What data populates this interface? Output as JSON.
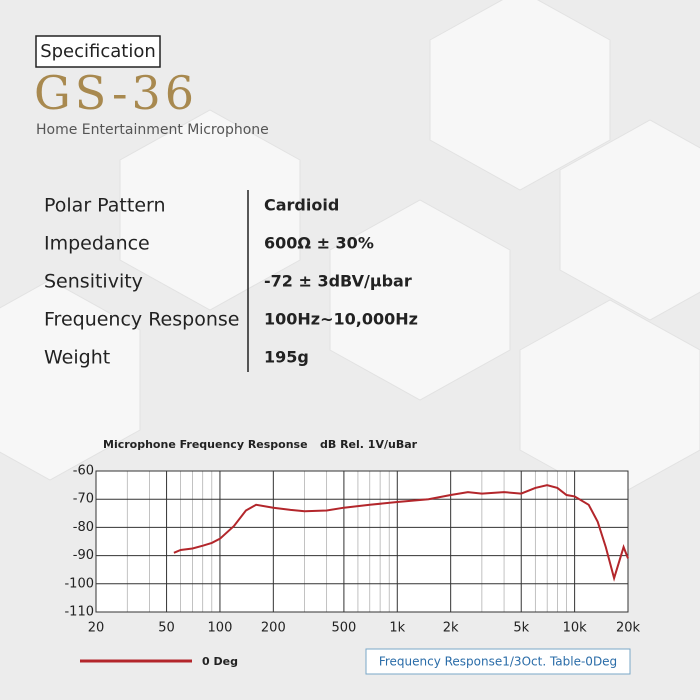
{
  "header": {
    "badge": "Specification",
    "title": "GS-36",
    "subtitle": "Home Entertainment Microphone"
  },
  "specs": {
    "rows": [
      [
        "Polar Pattern",
        "Cardioid"
      ],
      [
        "Impedance",
        "600Ω ± 30%"
      ],
      [
        "Sensitivity",
        "-72 ± 3dBV/μbar"
      ],
      [
        "Frequency Response",
        "100Hz~10,000Hz"
      ],
      [
        "Weight",
        "195g"
      ]
    ]
  },
  "chart_data": {
    "type": "line",
    "title": "Microphone Frequency Response",
    "y_label": "dB Rel. 1V/uBar",
    "x": [
      55,
      60,
      70,
      80,
      90,
      100,
      120,
      140,
      160,
      200,
      250,
      300,
      400,
      500,
      700,
      1000,
      1500,
      2000,
      2500,
      3000,
      4000,
      5000,
      6000,
      7000,
      8000,
      9000,
      10000,
      12000,
      13500,
      15000,
      16700,
      18900,
      20000
    ],
    "series": [
      {
        "name": "0 Deg",
        "color": "#b3262b",
        "values": [
          -89,
          -88,
          -87.5,
          -86.5,
          -85.5,
          -84,
          -79.5,
          -74,
          -72,
          -73,
          -73.8,
          -74.3,
          -74,
          -73,
          -72,
          -71,
          -70,
          -68.5,
          -67.5,
          -68,
          -67.5,
          -68,
          -66,
          -65,
          -66,
          -68.5,
          -69,
          -72,
          -78,
          -87,
          -98,
          -87,
          -91
        ]
      }
    ],
    "xlim": [
      20,
      20000
    ],
    "ylim": [
      -110,
      -60
    ],
    "x_log": true,
    "grid": true,
    "xticks": [
      20,
      50,
      100,
      200,
      500,
      {
        "value": 1000,
        "label": "1k"
      },
      {
        "value": 2000,
        "label": "2k"
      },
      {
        "value": 5000,
        "label": "5k"
      },
      {
        "value": 10000,
        "label": "10k"
      },
      {
        "value": 20000,
        "label": "20k"
      }
    ],
    "x_minor_ticks": [
      30,
      40,
      60,
      70,
      80,
      90,
      300,
      400,
      600,
      700,
      800,
      900,
      3000,
      4000,
      6000,
      7000,
      8000,
      9000
    ],
    "yticks": [
      -60,
      -70,
      -80,
      -90,
      -100,
      -110
    ],
    "footnote": "Frequency Response1/3Oct. Table-0Deg"
  }
}
